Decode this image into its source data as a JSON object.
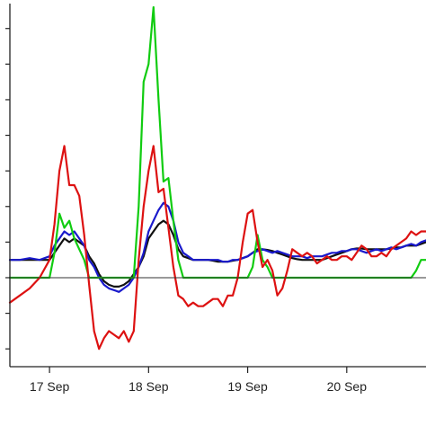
{
  "chart_data": {
    "type": "line",
    "title": "",
    "xlabel": "",
    "ylabel": "",
    "x_tick_labels": [
      "17 Sep",
      "18 Sep",
      "19 Sep",
      "20 Sep"
    ],
    "xlim": [
      -0.4,
      3.8
    ],
    "ylim": [
      -2.5,
      7.7
    ],
    "grid": false,
    "legend": "none",
    "baseline": 0,
    "x": [
      -0.4,
      -0.3,
      -0.2,
      -0.1,
      0.0,
      0.05,
      0.1,
      0.15,
      0.2,
      0.25,
      0.3,
      0.35,
      0.4,
      0.45,
      0.5,
      0.55,
      0.6,
      0.65,
      0.7,
      0.75,
      0.8,
      0.85,
      0.9,
      0.95,
      1.0,
      1.05,
      1.1,
      1.15,
      1.2,
      1.25,
      1.3,
      1.35,
      1.4,
      1.45,
      1.5,
      1.55,
      1.6,
      1.65,
      1.7,
      1.75,
      1.8,
      1.85,
      1.9,
      1.95,
      2.0,
      2.05,
      2.1,
      2.15,
      2.2,
      2.25,
      2.3,
      2.35,
      2.4,
      2.45,
      2.5,
      2.55,
      2.6,
      2.65,
      2.7,
      2.75,
      2.8,
      2.85,
      2.9,
      2.95,
      3.0,
      3.05,
      3.1,
      3.15,
      3.2,
      3.25,
      3.3,
      3.35,
      3.4,
      3.45,
      3.5,
      3.55,
      3.6,
      3.65,
      3.7,
      3.75,
      3.8
    ],
    "series": [
      {
        "color": "#111111",
        "values": [
          0.5,
          0.5,
          0.5,
          0.5,
          0.5,
          0.7,
          0.9,
          1.1,
          1.0,
          1.1,
          1.0,
          0.9,
          0.6,
          0.4,
          0.1,
          -0.1,
          -0.2,
          -0.25,
          -0.25,
          -0.2,
          -0.1,
          0.1,
          0.3,
          0.6,
          1.1,
          1.3,
          1.5,
          1.6,
          1.5,
          1.2,
          0.8,
          0.6,
          0.55,
          0.5,
          0.5,
          0.5,
          0.5,
          0.48,
          0.45,
          0.45,
          0.45,
          0.48,
          0.5,
          0.55,
          0.6,
          0.7,
          0.8,
          0.8,
          0.78,
          0.75,
          0.7,
          0.65,
          0.6,
          0.55,
          0.52,
          0.5,
          0.5,
          0.5,
          0.5,
          0.5,
          0.55,
          0.6,
          0.65,
          0.7,
          0.75,
          0.8,
          0.82,
          0.82,
          0.8,
          0.8,
          0.8,
          0.8,
          0.8,
          0.82,
          0.85,
          0.85,
          0.9,
          0.9,
          0.9,
          0.95,
          1.0
        ]
      },
      {
        "color": "#1a1acc",
        "values": [
          0.5,
          0.5,
          0.55,
          0.5,
          0.6,
          0.9,
          1.1,
          1.3,
          1.2,
          1.3,
          1.1,
          0.9,
          0.5,
          0.3,
          0.0,
          -0.2,
          -0.3,
          -0.35,
          -0.4,
          -0.3,
          -0.2,
          0.0,
          0.3,
          0.7,
          1.3,
          1.6,
          1.9,
          2.1,
          2.0,
          1.6,
          1.0,
          0.7,
          0.6,
          0.5,
          0.5,
          0.5,
          0.5,
          0.5,
          0.5,
          0.45,
          0.45,
          0.5,
          0.5,
          0.55,
          0.6,
          0.7,
          0.75,
          0.8,
          0.75,
          0.7,
          0.75,
          0.7,
          0.65,
          0.6,
          0.6,
          0.6,
          0.55,
          0.6,
          0.6,
          0.6,
          0.65,
          0.7,
          0.7,
          0.75,
          0.75,
          0.8,
          0.8,
          0.75,
          0.7,
          0.75,
          0.8,
          0.75,
          0.8,
          0.85,
          0.8,
          0.85,
          0.9,
          0.95,
          0.9,
          1.0,
          1.05
        ]
      },
      {
        "color": "#11cc11",
        "values": [
          0.0,
          0.0,
          0.0,
          0.0,
          0.0,
          0.7,
          1.8,
          1.4,
          1.6,
          1.1,
          0.8,
          0.5,
          0.0,
          0.0,
          0.0,
          0.0,
          0.0,
          0.0,
          0.0,
          0.0,
          0.0,
          0.0,
          2.0,
          5.5,
          6.0,
          7.6,
          5.0,
          2.7,
          2.8,
          1.6,
          0.5,
          0.0,
          0.0,
          0.0,
          0.0,
          0.0,
          0.0,
          0.0,
          0.0,
          0.0,
          0.0,
          0.0,
          0.0,
          0.0,
          0.0,
          0.3,
          1.2,
          0.5,
          0.3,
          0.0,
          0.0,
          0.0,
          0.0,
          0.0,
          0.0,
          0.0,
          0.0,
          0.0,
          0.0,
          0.0,
          0.0,
          0.0,
          0.0,
          0.0,
          0.0,
          0.0,
          0.0,
          0.0,
          0.0,
          0.0,
          0.0,
          0.0,
          0.0,
          0.0,
          0.0,
          0.0,
          0.0,
          0.0,
          0.2,
          0.5,
          0.5
        ]
      },
      {
        "color": "#dd1111",
        "values": [
          -0.7,
          -0.5,
          -0.3,
          0.0,
          0.5,
          1.5,
          3.0,
          3.7,
          2.6,
          2.6,
          2.3,
          1.2,
          -0.2,
          -1.5,
          -2.0,
          -1.7,
          -1.5,
          -1.6,
          -1.7,
          -1.5,
          -1.8,
          -1.5,
          0.5,
          2.0,
          3.0,
          3.7,
          2.4,
          2.5,
          1.4,
          0.3,
          -0.5,
          -0.6,
          -0.8,
          -0.7,
          -0.8,
          -0.8,
          -0.7,
          -0.6,
          -0.6,
          -0.8,
          -0.5,
          -0.5,
          0.0,
          1.0,
          1.8,
          1.9,
          1.0,
          0.3,
          0.5,
          0.2,
          -0.5,
          -0.3,
          0.2,
          0.8,
          0.7,
          0.6,
          0.7,
          0.6,
          0.4,
          0.5,
          0.6,
          0.5,
          0.5,
          0.6,
          0.6,
          0.5,
          0.7,
          0.9,
          0.8,
          0.6,
          0.6,
          0.7,
          0.6,
          0.8,
          0.9,
          1.0,
          1.1,
          1.3,
          1.2,
          1.3,
          1.3
        ]
      }
    ]
  }
}
